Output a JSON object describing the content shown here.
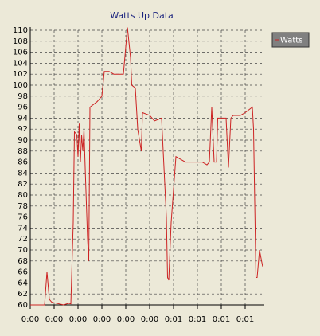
{
  "chart_data": {
    "type": "line",
    "title": "Watts Up Data",
    "x": [
      0,
      6,
      7,
      8,
      9,
      11,
      14,
      16,
      17,
      18,
      18.5,
      19.5,
      20,
      20.5,
      21,
      21.5,
      22,
      22.5,
      23,
      24,
      24.5,
      25,
      28,
      30,
      31,
      33,
      35,
      37.5,
      39,
      40.7,
      42,
      42.5,
      44,
      45,
      46.5,
      47,
      50,
      52,
      55,
      57,
      57.5,
      58,
      59,
      61,
      63,
      65,
      70,
      72,
      74,
      75,
      76,
      77,
      78,
      78.5,
      80,
      82,
      83,
      84,
      85,
      88,
      90,
      93,
      93.5,
      94.5,
      95,
      96,
      97.3
    ],
    "series": [
      {
        "name": "Watts",
        "color": "#cc2222",
        "values": [
          60,
          60,
          66,
          61,
          60.5,
          60.3,
          60,
          60.3,
          60.2,
          75,
          91.5,
          91,
          87,
          93,
          86,
          91,
          88,
          92,
          85,
          72,
          68,
          96,
          97,
          98,
          102.5,
          102.5,
          102,
          102,
          102,
          110.5,
          105,
          100,
          99.5,
          92,
          88,
          95,
          94.5,
          93.5,
          94,
          76,
          65,
          64.5,
          75,
          87,
          86.5,
          86,
          86,
          86,
          85.5,
          86,
          96,
          86,
          86,
          94,
          94,
          94,
          85,
          94,
          94.5,
          94.5,
          95,
          96,
          92,
          65,
          65,
          70,
          67
        ]
      }
    ],
    "xlim": [
      0,
      98
    ],
    "xticks": [
      {
        "value": 0,
        "label": "0:00"
      },
      {
        "value": 10,
        "label": "0:00"
      },
      {
        "value": 20,
        "label": "0:00"
      },
      {
        "value": 30,
        "label": "0:00"
      },
      {
        "value": 40,
        "label": "0:00"
      },
      {
        "value": 50,
        "label": "0:00"
      },
      {
        "value": 60,
        "label": "0:01"
      },
      {
        "value": 70,
        "label": "0:01"
      },
      {
        "value": 80,
        "label": "0:01"
      },
      {
        "value": 90,
        "label": "0:01"
      }
    ],
    "ylim": [
      60,
      110
    ],
    "yticks": [
      60,
      62,
      64,
      66,
      68,
      70,
      72,
      74,
      76,
      78,
      80,
      82,
      84,
      86,
      88,
      90,
      92,
      94,
      96,
      98,
      100,
      102,
      104,
      106,
      108,
      110
    ],
    "grid": true
  }
}
